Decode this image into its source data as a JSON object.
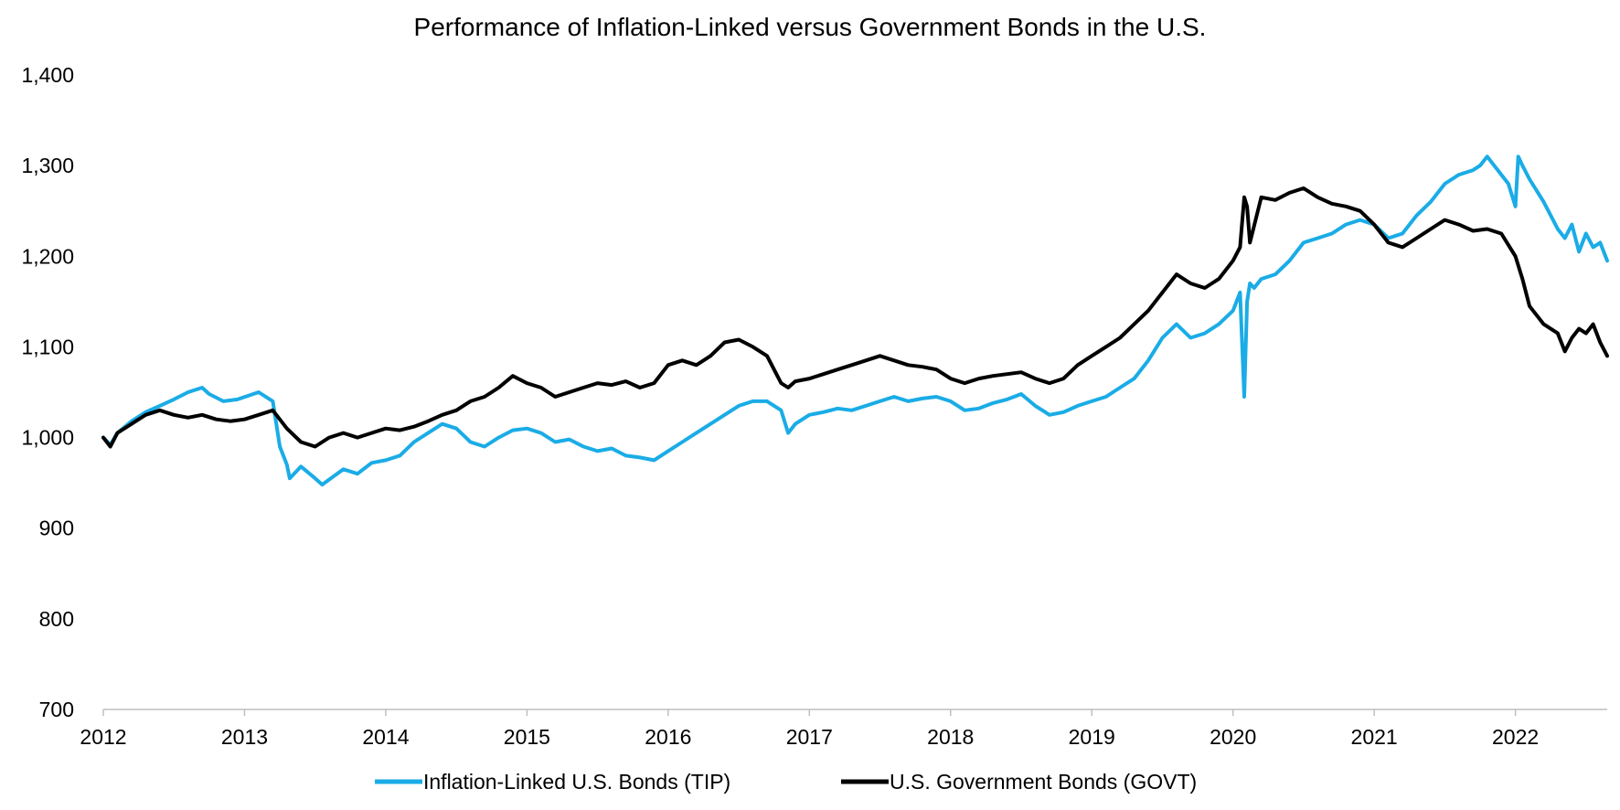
{
  "chart_data": {
    "type": "line",
    "title": "Performance of Inflation-Linked versus Government Bonds in the U.S.",
    "xlabel": "",
    "ylabel": "",
    "xlim": [
      2012.0,
      2022.65
    ],
    "ylim": [
      700,
      1400
    ],
    "yticks": [
      700,
      800,
      900,
      1000,
      1100,
      1200,
      1300,
      1400
    ],
    "ytick_labels": [
      "700",
      "800",
      "900",
      "1,000",
      "1,100",
      "1,200",
      "1,300",
      "1,400"
    ],
    "xticks": [
      2012,
      2013,
      2014,
      2015,
      2016,
      2017,
      2018,
      2019,
      2020,
      2021,
      2022
    ],
    "xtick_labels": [
      "2012",
      "2013",
      "2014",
      "2015",
      "2016",
      "2017",
      "2018",
      "2019",
      "2020",
      "2021",
      "2022"
    ],
    "grid": false,
    "legend_position": "bottom-center",
    "series": [
      {
        "name": "Inflation-Linked U.S. Bonds (TIP)",
        "color": "#1aace6",
        "x": [
          2012.0,
          2012.05,
          2012.1,
          2012.2,
          2012.3,
          2012.4,
          2012.5,
          2012.6,
          2012.7,
          2012.75,
          2012.85,
          2012.95,
          2013.1,
          2013.2,
          2013.25,
          2013.3,
          2013.32,
          2013.4,
          2013.5,
          2013.55,
          2013.7,
          2013.8,
          2013.9,
          2014.0,
          2014.1,
          2014.2,
          2014.3,
          2014.4,
          2014.5,
          2014.6,
          2014.7,
          2014.8,
          2014.9,
          2015.0,
          2015.1,
          2015.2,
          2015.3,
          2015.4,
          2015.5,
          2015.6,
          2015.7,
          2015.8,
          2015.9,
          2016.0,
          2016.1,
          2016.2,
          2016.3,
          2016.4,
          2016.5,
          2016.6,
          2016.7,
          2016.8,
          2016.85,
          2016.9,
          2017.0,
          2017.1,
          2017.2,
          2017.3,
          2017.4,
          2017.5,
          2017.6,
          2017.7,
          2017.8,
          2017.9,
          2018.0,
          2018.1,
          2018.2,
          2018.3,
          2018.4,
          2018.5,
          2018.6,
          2018.7,
          2018.8,
          2018.9,
          2019.0,
          2019.1,
          2019.2,
          2019.3,
          2019.4,
          2019.5,
          2019.6,
          2019.7,
          2019.8,
          2019.9,
          2020.0,
          2020.05,
          2020.08,
          2020.1,
          2020.12,
          2020.15,
          2020.2,
          2020.3,
          2020.4,
          2020.5,
          2020.6,
          2020.7,
          2020.8,
          2020.9,
          2021.0,
          2021.1,
          2021.2,
          2021.3,
          2021.4,
          2021.5,
          2021.6,
          2021.7,
          2021.75,
          2021.8,
          2021.9,
          2021.95,
          2022.0,
          2022.02,
          2022.05,
          2022.1,
          2022.2,
          2022.3,
          2022.35,
          2022.4,
          2022.45,
          2022.5,
          2022.55,
          2022.6,
          2022.65
        ],
        "values": [
          1000,
          992,
          1005,
          1018,
          1028,
          1035,
          1042,
          1050,
          1055,
          1048,
          1040,
          1042,
          1050,
          1040,
          990,
          970,
          955,
          968,
          955,
          948,
          965,
          960,
          972,
          975,
          980,
          995,
          1005,
          1015,
          1010,
          995,
          990,
          1000,
          1008,
          1010,
          1005,
          995,
          998,
          990,
          985,
          988,
          980,
          978,
          975,
          985,
          995,
          1005,
          1015,
          1025,
          1035,
          1040,
          1040,
          1030,
          1005,
          1015,
          1025,
          1028,
          1032,
          1030,
          1035,
          1040,
          1045,
          1040,
          1043,
          1045,
          1040,
          1030,
          1032,
          1038,
          1042,
          1048,
          1035,
          1025,
          1028,
          1035,
          1040,
          1045,
          1055,
          1065,
          1085,
          1110,
          1125,
          1110,
          1115,
          1125,
          1140,
          1160,
          1045,
          1150,
          1170,
          1165,
          1175,
          1180,
          1195,
          1215,
          1220,
          1225,
          1235,
          1240,
          1235,
          1220,
          1225,
          1245,
          1260,
          1280,
          1290,
          1295,
          1300,
          1310,
          1290,
          1280,
          1255,
          1310,
          1300,
          1285,
          1260,
          1230,
          1220,
          1235,
          1205,
          1225,
          1210,
          1215,
          1195
        ]
      },
      {
        "name": "U.S. Government Bonds (GOVT)",
        "color": "#000000",
        "x": [
          2012.0,
          2012.05,
          2012.1,
          2012.2,
          2012.3,
          2012.4,
          2012.5,
          2012.6,
          2012.7,
          2012.8,
          2012.9,
          2013.0,
          2013.1,
          2013.2,
          2013.3,
          2013.4,
          2013.5,
          2013.6,
          2013.7,
          2013.8,
          2013.9,
          2014.0,
          2014.1,
          2014.2,
          2014.3,
          2014.4,
          2014.5,
          2014.6,
          2014.7,
          2014.8,
          2014.9,
          2015.0,
          2015.1,
          2015.2,
          2015.3,
          2015.4,
          2015.5,
          2015.6,
          2015.7,
          2015.8,
          2015.9,
          2016.0,
          2016.1,
          2016.2,
          2016.3,
          2016.4,
          2016.5,
          2016.6,
          2016.7,
          2016.8,
          2016.85,
          2016.9,
          2017.0,
          2017.1,
          2017.2,
          2017.3,
          2017.4,
          2017.5,
          2017.6,
          2017.7,
          2017.8,
          2017.9,
          2018.0,
          2018.1,
          2018.2,
          2018.3,
          2018.4,
          2018.5,
          2018.6,
          2018.7,
          2018.8,
          2018.9,
          2019.0,
          2019.1,
          2019.2,
          2019.3,
          2019.4,
          2019.5,
          2019.6,
          2019.7,
          2019.8,
          2019.9,
          2020.0,
          2020.05,
          2020.08,
          2020.1,
          2020.12,
          2020.2,
          2020.3,
          2020.4,
          2020.5,
          2020.6,
          2020.7,
          2020.8,
          2020.9,
          2021.0,
          2021.1,
          2021.2,
          2021.3,
          2021.4,
          2021.5,
          2021.6,
          2021.7,
          2021.8,
          2021.9,
          2022.0,
          2022.05,
          2022.1,
          2022.2,
          2022.3,
          2022.35,
          2022.4,
          2022.45,
          2022.5,
          2022.55,
          2022.6,
          2022.65
        ],
        "values": [
          1000,
          990,
          1005,
          1015,
          1025,
          1030,
          1025,
          1022,
          1025,
          1020,
          1018,
          1020,
          1025,
          1030,
          1010,
          995,
          990,
          1000,
          1005,
          1000,
          1005,
          1010,
          1008,
          1012,
          1018,
          1025,
          1030,
          1040,
          1045,
          1055,
          1068,
          1060,
          1055,
          1045,
          1050,
          1055,
          1060,
          1058,
          1062,
          1055,
          1060,
          1080,
          1085,
          1080,
          1090,
          1105,
          1108,
          1100,
          1090,
          1060,
          1055,
          1062,
          1065,
          1070,
          1075,
          1080,
          1085,
          1090,
          1085,
          1080,
          1078,
          1075,
          1065,
          1060,
          1065,
          1068,
          1070,
          1072,
          1065,
          1060,
          1065,
          1080,
          1090,
          1100,
          1110,
          1125,
          1140,
          1160,
          1180,
          1170,
          1165,
          1175,
          1195,
          1210,
          1265,
          1255,
          1215,
          1265,
          1262,
          1270,
          1275,
          1265,
          1258,
          1255,
          1250,
          1235,
          1215,
          1210,
          1220,
          1230,
          1240,
          1235,
          1228,
          1230,
          1225,
          1200,
          1175,
          1145,
          1125,
          1115,
          1095,
          1110,
          1120,
          1115,
          1125,
          1105,
          1090
        ]
      }
    ]
  }
}
